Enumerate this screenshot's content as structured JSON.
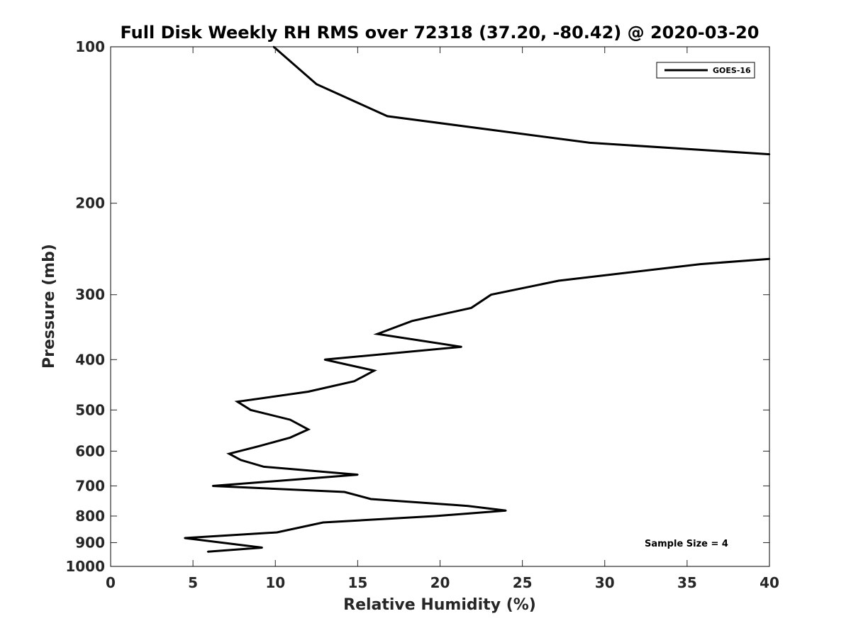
{
  "chart_data": {
    "type": "line",
    "title": "Full Disk Weekly RH RMS over 72318 (37.20, -80.42) @ 2020-03-20",
    "xlabel": "Relative Humidity (%)",
    "ylabel": "Pressure (mb)",
    "xlim": [
      0,
      40
    ],
    "ylim": [
      100,
      1000
    ],
    "y_scale": "log",
    "y_reversed": true,
    "grid": false,
    "legend_position": "top-right",
    "x_ticks": [
      0,
      5,
      10,
      15,
      20,
      25,
      30,
      35,
      40
    ],
    "x_tick_labels": [
      "0",
      "5",
      "10",
      "15",
      "20",
      "25",
      "30",
      "35",
      "40"
    ],
    "y_ticks": [
      100,
      200,
      300,
      400,
      500,
      600,
      700,
      800,
      900,
      1000
    ],
    "y_tick_labels": [
      "100",
      "200",
      "300",
      "400",
      "500",
      "600",
      "700",
      "800",
      "900",
      "1000"
    ],
    "line_color": "#000000",
    "series": [
      {
        "name": "GOES-16",
        "segments": [
          [
            {
              "x": 9.9,
              "y": 100
            },
            {
              "x": 12.5,
              "y": 118
            },
            {
              "x": 16.8,
              "y": 136
            },
            {
              "x": 29.1,
              "y": 153
            },
            {
              "x": 40.0,
              "y": 161
            }
          ],
          [
            {
              "x": 40.0,
              "y": 256
            },
            {
              "x": 35.8,
              "y": 262
            },
            {
              "x": 27.2,
              "y": 282
            },
            {
              "x": 23.1,
              "y": 300
            },
            {
              "x": 21.9,
              "y": 318
            },
            {
              "x": 18.3,
              "y": 337
            },
            {
              "x": 16.2,
              "y": 357
            },
            {
              "x": 21.3,
              "y": 378
            },
            {
              "x": 13.0,
              "y": 400
            },
            {
              "x": 16.0,
              "y": 420
            },
            {
              "x": 14.8,
              "y": 440
            },
            {
              "x": 12.0,
              "y": 461
            },
            {
              "x": 7.7,
              "y": 482
            },
            {
              "x": 8.5,
              "y": 500
            },
            {
              "x": 10.9,
              "y": 522
            },
            {
              "x": 12.0,
              "y": 545
            },
            {
              "x": 10.9,
              "y": 565
            },
            {
              "x": 9.0,
              "y": 587
            },
            {
              "x": 7.2,
              "y": 607
            },
            {
              "x": 7.9,
              "y": 624
            },
            {
              "x": 9.3,
              "y": 643
            },
            {
              "x": 15.0,
              "y": 666
            },
            {
              "x": 6.2,
              "y": 700
            },
            {
              "x": 14.2,
              "y": 719
            },
            {
              "x": 15.8,
              "y": 742
            },
            {
              "x": 21.7,
              "y": 765
            },
            {
              "x": 24.0,
              "y": 781
            },
            {
              "x": 19.7,
              "y": 800
            },
            {
              "x": 12.9,
              "y": 823
            },
            {
              "x": 10.1,
              "y": 860
            },
            {
              "x": 4.5,
              "y": 882
            },
            {
              "x": 9.2,
              "y": 920
            },
            {
              "x": 5.9,
              "y": 937
            }
          ]
        ]
      }
    ],
    "annotations": [
      {
        "text": "Sample Size = 4",
        "position": "bottom-right"
      }
    ]
  }
}
